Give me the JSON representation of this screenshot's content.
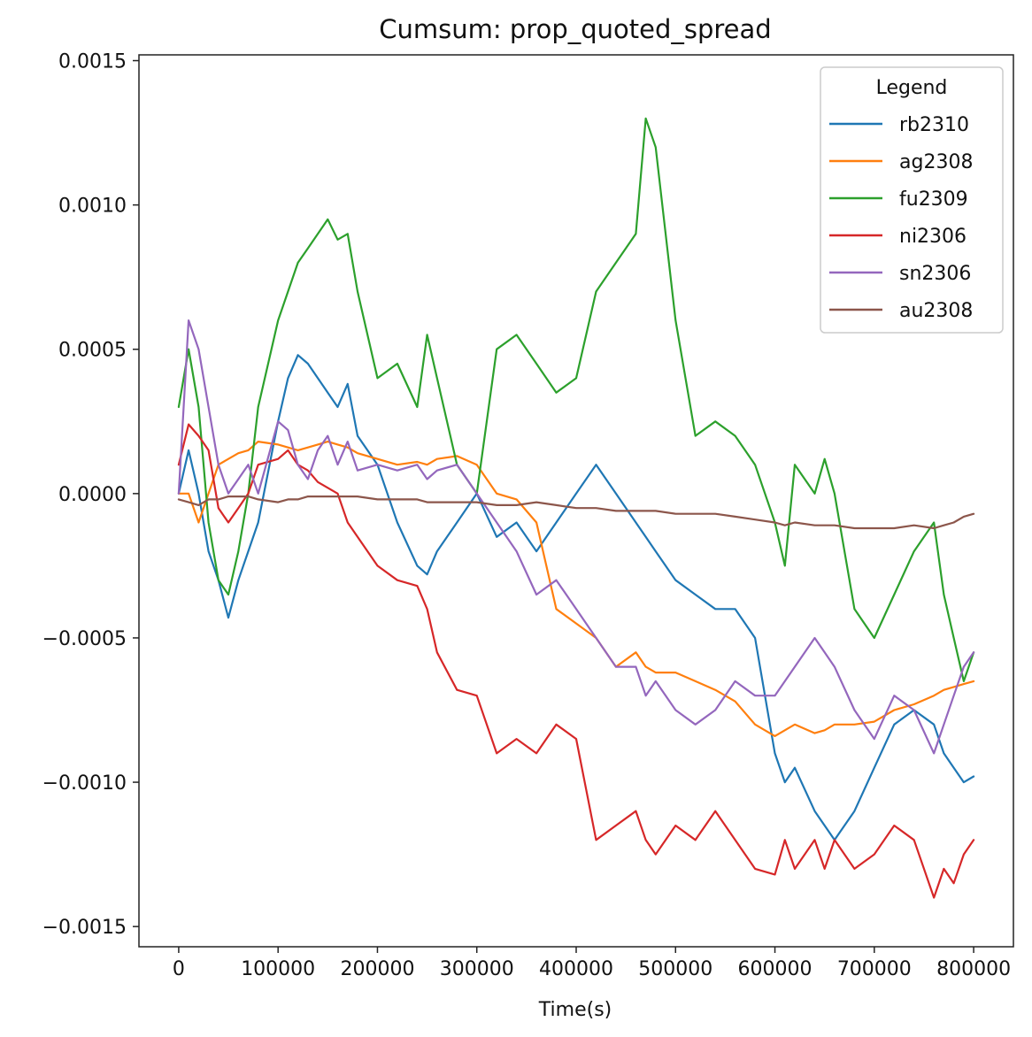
{
  "chart_data": {
    "type": "line",
    "title": "Cumsum: prop_quoted_spread",
    "xlabel": "Time(s)",
    "ylabel": "",
    "xlim": [
      -40000,
      840000
    ],
    "ylim": [
      -0.00157,
      0.00152
    ],
    "x_ticks": [
      0,
      100000,
      200000,
      300000,
      400000,
      500000,
      600000,
      700000,
      800000
    ],
    "x_tick_labels": [
      "0",
      "100000",
      "200000",
      "300000",
      "400000",
      "500000",
      "600000",
      "700000",
      "800000"
    ],
    "y_ticks": [
      0.0015,
      0.001,
      0.0005,
      0.0,
      -0.0005,
      -0.001,
      -0.0015
    ],
    "y_tick_labels": [
      "0.0015",
      "0.0010",
      "0.0005",
      "0.0000",
      "−0.0005",
      "−0.0010",
      "−0.0015"
    ],
    "grid": false,
    "legend_title": "Legend",
    "legend_position": "top-right",
    "x": [
      0,
      10000,
      20000,
      30000,
      40000,
      50000,
      60000,
      70000,
      80000,
      100000,
      110000,
      120000,
      130000,
      140000,
      150000,
      160000,
      170000,
      180000,
      200000,
      220000,
      240000,
      250000,
      260000,
      280000,
      300000,
      320000,
      340000,
      360000,
      380000,
      400000,
      420000,
      440000,
      460000,
      470000,
      480000,
      500000,
      520000,
      540000,
      560000,
      580000,
      600000,
      610000,
      620000,
      640000,
      650000,
      660000,
      680000,
      700000,
      720000,
      740000,
      760000,
      770000,
      780000,
      790000,
      800000
    ],
    "series": [
      {
        "name": "rb2310",
        "color": "#1f77b4",
        "values": [
          0.0,
          0.00015,
          0.0,
          -0.0002,
          -0.0003,
          -0.00043,
          -0.0003,
          -0.0002,
          -0.0001,
          0.00025,
          0.0004,
          0.00048,
          0.00045,
          0.0004,
          0.00035,
          0.0003,
          0.00038,
          0.0002,
          0.0001,
          -0.0001,
          -0.00025,
          -0.00028,
          -0.0002,
          -0.0001,
          0.0,
          -0.00015,
          -0.0001,
          -0.0002,
          -0.0001,
          0.0,
          0.0001,
          0.0,
          -0.0001,
          -0.00015,
          -0.0002,
          -0.0003,
          -0.00035,
          -0.0004,
          -0.0004,
          -0.0005,
          -0.0009,
          -0.001,
          -0.00095,
          -0.0011,
          -0.00115,
          -0.0012,
          -0.0011,
          -0.00095,
          -0.0008,
          -0.00075,
          -0.0008,
          -0.0009,
          -0.00095,
          -0.001,
          -0.00098
        ]
      },
      {
        "name": "ag2308",
        "color": "#ff7f0e",
        "values": [
          0.0,
          0.0,
          -0.0001,
          0.0,
          0.0001,
          0.00012,
          0.00014,
          0.00015,
          0.00018,
          0.00017,
          0.00016,
          0.00015,
          0.00016,
          0.00017,
          0.00018,
          0.00017,
          0.00016,
          0.00014,
          0.00012,
          0.0001,
          0.00011,
          0.0001,
          0.00012,
          0.00013,
          0.0001,
          0.0,
          -2e-05,
          -0.0001,
          -0.0004,
          -0.00045,
          -0.0005,
          -0.0006,
          -0.00055,
          -0.0006,
          -0.00062,
          -0.00062,
          -0.00065,
          -0.00068,
          -0.00072,
          -0.0008,
          -0.00084,
          -0.00082,
          -0.0008,
          -0.00083,
          -0.00082,
          -0.0008,
          -0.0008,
          -0.00079,
          -0.00075,
          -0.00073,
          -0.0007,
          -0.00068,
          -0.00067,
          -0.00066,
          -0.00065
        ]
      },
      {
        "name": "fu2309",
        "color": "#2ca02c",
        "values": [
          0.0003,
          0.0005,
          0.0003,
          -0.0001,
          -0.0003,
          -0.00035,
          -0.0002,
          0.0,
          0.0003,
          0.0006,
          0.0007,
          0.0008,
          0.00085,
          0.0009,
          0.00095,
          0.00088,
          0.0009,
          0.0007,
          0.0004,
          0.00045,
          0.0003,
          0.00055,
          0.0004,
          0.0001,
          0.0,
          0.0005,
          0.00055,
          0.00045,
          0.00035,
          0.0004,
          0.0007,
          0.0008,
          0.0009,
          0.0013,
          0.0012,
          0.0006,
          0.0002,
          0.00025,
          0.0002,
          0.0001,
          -0.0001,
          -0.00025,
          0.0001,
          0.0,
          0.00012,
          0.0,
          -0.0004,
          -0.0005,
          -0.00035,
          -0.0002,
          -0.0001,
          -0.00035,
          -0.0005,
          -0.00065,
          -0.00055
        ]
      },
      {
        "name": "ni2306",
        "color": "#d62728",
        "values": [
          0.0001,
          0.00024,
          0.0002,
          0.00015,
          -5e-05,
          -0.0001,
          -5e-05,
          0.0,
          0.0001,
          0.00012,
          0.00015,
          0.0001,
          8e-05,
          4e-05,
          2e-05,
          0.0,
          -0.0001,
          -0.00015,
          -0.00025,
          -0.0003,
          -0.00032,
          -0.0004,
          -0.00055,
          -0.00068,
          -0.0007,
          -0.0009,
          -0.00085,
          -0.0009,
          -0.0008,
          -0.00085,
          -0.0012,
          -0.00115,
          -0.0011,
          -0.0012,
          -0.00125,
          -0.00115,
          -0.0012,
          -0.0011,
          -0.0012,
          -0.0013,
          -0.00132,
          -0.0012,
          -0.0013,
          -0.0012,
          -0.0013,
          -0.0012,
          -0.0013,
          -0.00125,
          -0.00115,
          -0.0012,
          -0.0014,
          -0.0013,
          -0.00135,
          -0.00125,
          -0.0012
        ]
      },
      {
        "name": "sn2306",
        "color": "#9467bd",
        "values": [
          0.0,
          0.0006,
          0.0005,
          0.0003,
          0.0001,
          0.0,
          5e-05,
          0.0001,
          0.0,
          0.00025,
          0.00022,
          0.0001,
          5e-05,
          0.00015,
          0.0002,
          0.0001,
          0.00018,
          8e-05,
          0.0001,
          8e-05,
          0.0001,
          5e-05,
          8e-05,
          0.0001,
          0.0,
          -0.0001,
          -0.0002,
          -0.00035,
          -0.0003,
          -0.0004,
          -0.0005,
          -0.0006,
          -0.0006,
          -0.0007,
          -0.00065,
          -0.00075,
          -0.0008,
          -0.00075,
          -0.00065,
          -0.0007,
          -0.0007,
          -0.00065,
          -0.0006,
          -0.0005,
          -0.00055,
          -0.0006,
          -0.00075,
          -0.00085,
          -0.0007,
          -0.00075,
          -0.0009,
          -0.0008,
          -0.0007,
          -0.0006,
          -0.00055
        ]
      },
      {
        "name": "au2308",
        "color": "#8c564b",
        "values": [
          -2e-05,
          -3e-05,
          -4e-05,
          -2e-05,
          -2e-05,
          -1e-05,
          -1e-05,
          -1e-05,
          -2e-05,
          -3e-05,
          -2e-05,
          -2e-05,
          -1e-05,
          -1e-05,
          -1e-05,
          -1e-05,
          -1e-05,
          -1e-05,
          -2e-05,
          -2e-05,
          -2e-05,
          -3e-05,
          -3e-05,
          -3e-05,
          -3e-05,
          -4e-05,
          -4e-05,
          -3e-05,
          -4e-05,
          -5e-05,
          -5e-05,
          -6e-05,
          -6e-05,
          -6e-05,
          -6e-05,
          -7e-05,
          -7e-05,
          -7e-05,
          -8e-05,
          -9e-05,
          -0.0001,
          -0.00011,
          -0.0001,
          -0.00011,
          -0.00011,
          -0.00011,
          -0.00012,
          -0.00012,
          -0.00012,
          -0.00011,
          -0.00012,
          -0.00011,
          -0.0001,
          -8e-05,
          -7e-05
        ]
      }
    ]
  }
}
